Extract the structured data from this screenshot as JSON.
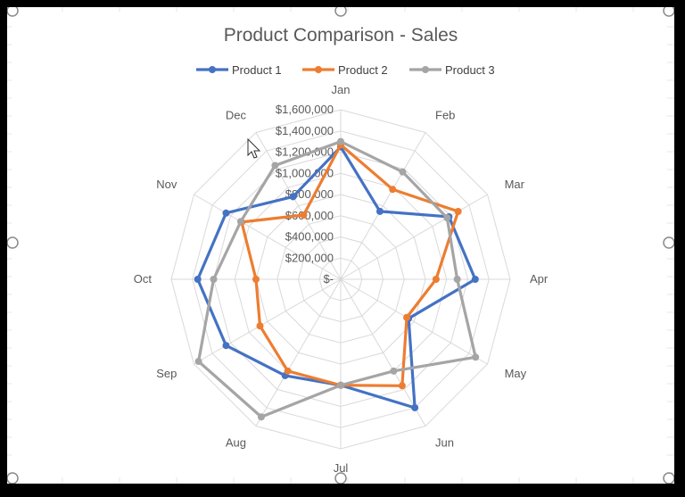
{
  "chart_data": {
    "type": "radar",
    "title": "Product Comparison - Sales",
    "categories": [
      "Jan",
      "Feb",
      "Mar",
      "Apr",
      "May",
      "Jun",
      "Jul",
      "Aug",
      "Sep",
      "Oct",
      "Nov",
      "Dec"
    ],
    "r_ticks": [
      "$-",
      "$200,000",
      "$400,000",
      "$600,000",
      "$800,000",
      "$1,000,000",
      "$1,200,000",
      "$1,400,000",
      "$1,600,000"
    ],
    "rlim": [
      0,
      1600000
    ],
    "legend_position": "top",
    "grid": true,
    "series": [
      {
        "name": "Product 1",
        "color": "#4472C4",
        "values": [
          1250000,
          740000,
          1180000,
          1270000,
          740000,
          1400000,
          1000000,
          1050000,
          1250000,
          1350000,
          1250000,
          900000
        ]
      },
      {
        "name": "Product 2",
        "color": "#ED7D31",
        "values": [
          1270000,
          980000,
          1280000,
          900000,
          720000,
          1160000,
          1000000,
          1000000,
          880000,
          800000,
          1080000,
          700000
        ]
      },
      {
        "name": "Product 3",
        "color": "#A5A5A5",
        "values": [
          1300000,
          1170000,
          1160000,
          1100000,
          1470000,
          1000000,
          1000000,
          1500000,
          1550000,
          1200000,
          1090000,
          1240000
        ]
      }
    ]
  }
}
